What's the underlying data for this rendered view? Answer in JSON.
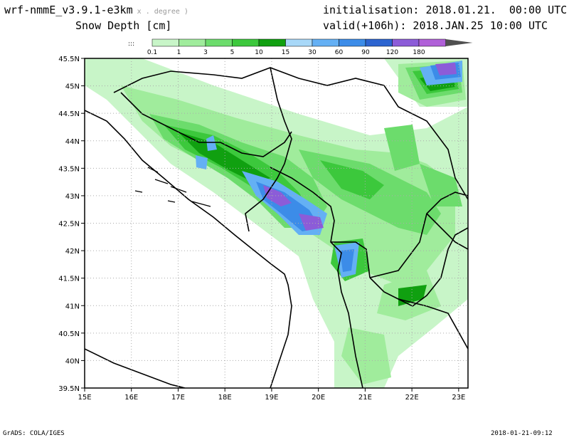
{
  "header": {
    "model": "wrf-nmmE_v3.9.1-e3km",
    "model_suffix": "x . degree )",
    "field": "Snow Depth [cm]",
    "init": "initialisation: 2018.01.21.  00:00 UTC",
    "valid": "valid(+106h): 2018.JAN.25 10:00 UTC"
  },
  "legend": {
    "levels": [
      "0.1",
      "1",
      "3",
      "5",
      "10",
      "15",
      "30",
      "60",
      "90",
      "120",
      "180"
    ],
    "colors": [
      "#c8f5c8",
      "#a0ec9c",
      "#6cdc6c",
      "#3cc83c",
      "#10a010",
      "#a8d8f8",
      "#64b0f4",
      "#3c8ce8",
      "#2c64d0",
      "#8c5cd8",
      "#b060d8",
      "#505050"
    ]
  },
  "axes": {
    "x_ticks": [
      "15E",
      "16E",
      "17E",
      "18E",
      "19E",
      "20E",
      "21E",
      "22E",
      "23E"
    ],
    "y_ticks": [
      "45.5N",
      "45N",
      "44.5N",
      "44N",
      "43.5N",
      "43N",
      "42.5N",
      "42N",
      "41.5N",
      "41N",
      "40.5N",
      "40N",
      "39.5N"
    ]
  },
  "footer": {
    "left": "GrADS: COLA/IGES",
    "right": "2018-01-21-09:12"
  }
}
